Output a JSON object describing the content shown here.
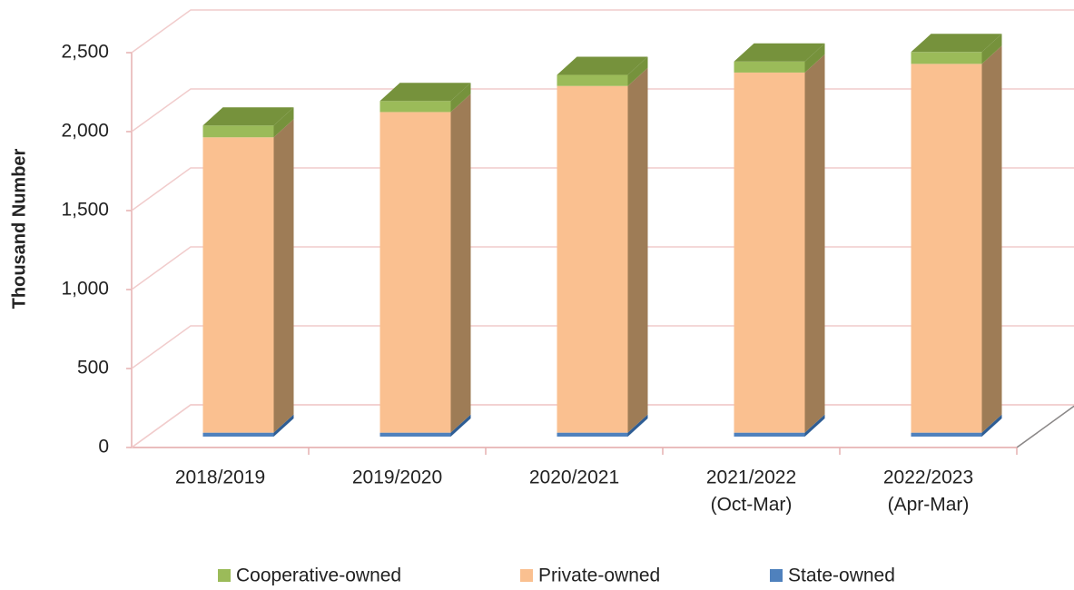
{
  "chart_data": {
    "type": "bar3d_stacked",
    "y_axis_label": "Thousand Number",
    "categories": [
      [
        "2018/2019"
      ],
      [
        "2019/2020"
      ],
      [
        "2020/2021"
      ],
      [
        "2021/2022",
        "(Oct-Mar)"
      ],
      [
        "2022/2023",
        "(Apr-Mar)"
      ]
    ],
    "series": [
      {
        "name": "State-owned",
        "color": "#4f81bd",
        "side_color": "#2e5d94",
        "values": [
          25,
          25,
          25,
          25,
          25
        ]
      },
      {
        "name": "Private-owned",
        "color": "#fac090",
        "side_color": "#9e7c56",
        "values": [
          1870,
          2030,
          2195,
          2280,
          2335
        ]
      },
      {
        "name": "Cooperative-owned",
        "color": "#9bbb59",
        "side_color": "#76923c",
        "values": [
          75,
          70,
          70,
          70,
          75
        ]
      }
    ],
    "legend_order": [
      2,
      1,
      0
    ],
    "ylim": [
      0,
      2500
    ],
    "yticks": [
      0,
      500,
      {
        "value": 1000,
        "label": "1,000"
      },
      {
        "value": 1500,
        "label": "1,500"
      },
      {
        "value": 2000,
        "label": "2,000"
      },
      {
        "value": 2500,
        "label": "2,500"
      }
    ],
    "grid": true
  }
}
